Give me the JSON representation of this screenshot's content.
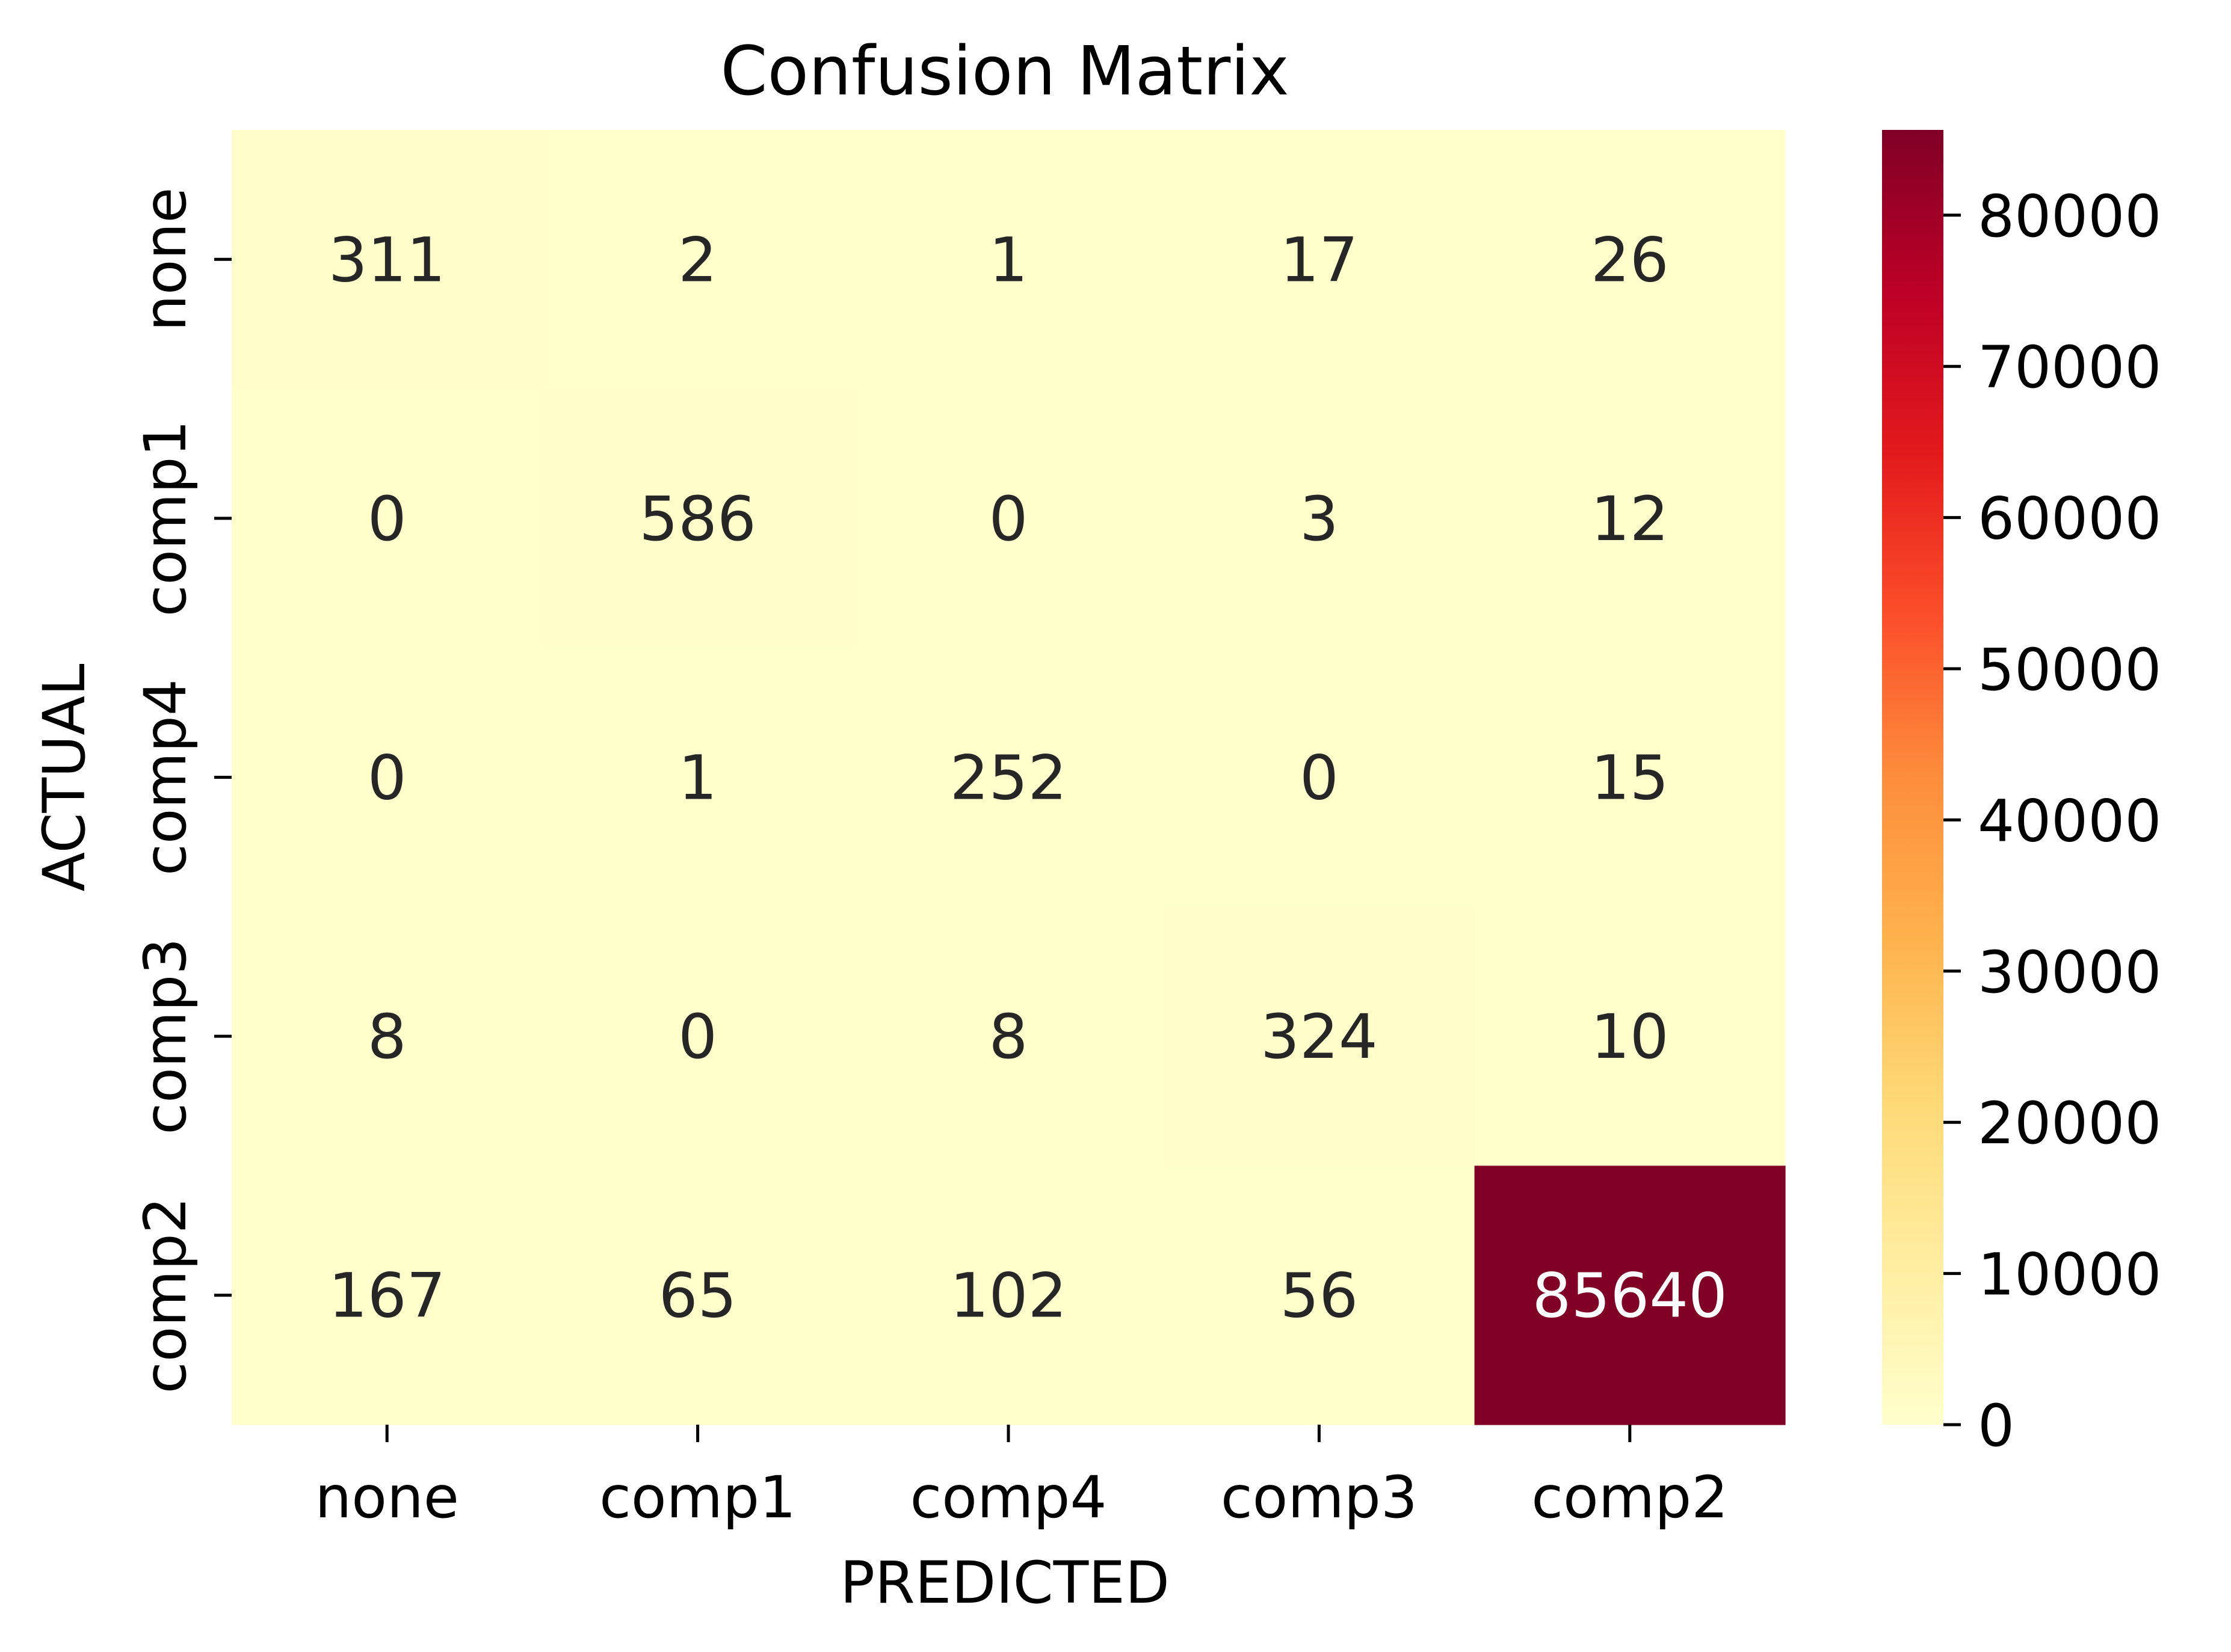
{
  "chart_data": {
    "type": "heatmap",
    "title": "Confusion Matrix",
    "xlabel": "PREDICTED",
    "ylabel": "ACTUAL",
    "x_categories": [
      "none",
      "comp1",
      "comp4",
      "comp3",
      "comp2"
    ],
    "y_categories": [
      "none",
      "comp1",
      "comp4",
      "comp3",
      "comp2"
    ],
    "matrix": [
      [
        311,
        2,
        1,
        17,
        26
      ],
      [
        0,
        586,
        0,
        3,
        12
      ],
      [
        0,
        1,
        252,
        0,
        15
      ],
      [
        8,
        0,
        8,
        324,
        10
      ],
      [
        167,
        65,
        102,
        56,
        85640
      ]
    ],
    "colormap": "YlOrRd",
    "colormap_stops": [
      "#ffffcc",
      "#ffeda0",
      "#fed976",
      "#feb24c",
      "#fd8d3c",
      "#fc4e2a",
      "#e31a1c",
      "#bd0026",
      "#800026"
    ],
    "colorbar": {
      "range": [
        0,
        85640
      ],
      "ticks": [
        0,
        10000,
        20000,
        30000,
        40000,
        50000,
        60000,
        70000,
        80000
      ]
    },
    "annotation_colors": {
      "dark": "#262626",
      "light": "#ffffff"
    }
  }
}
